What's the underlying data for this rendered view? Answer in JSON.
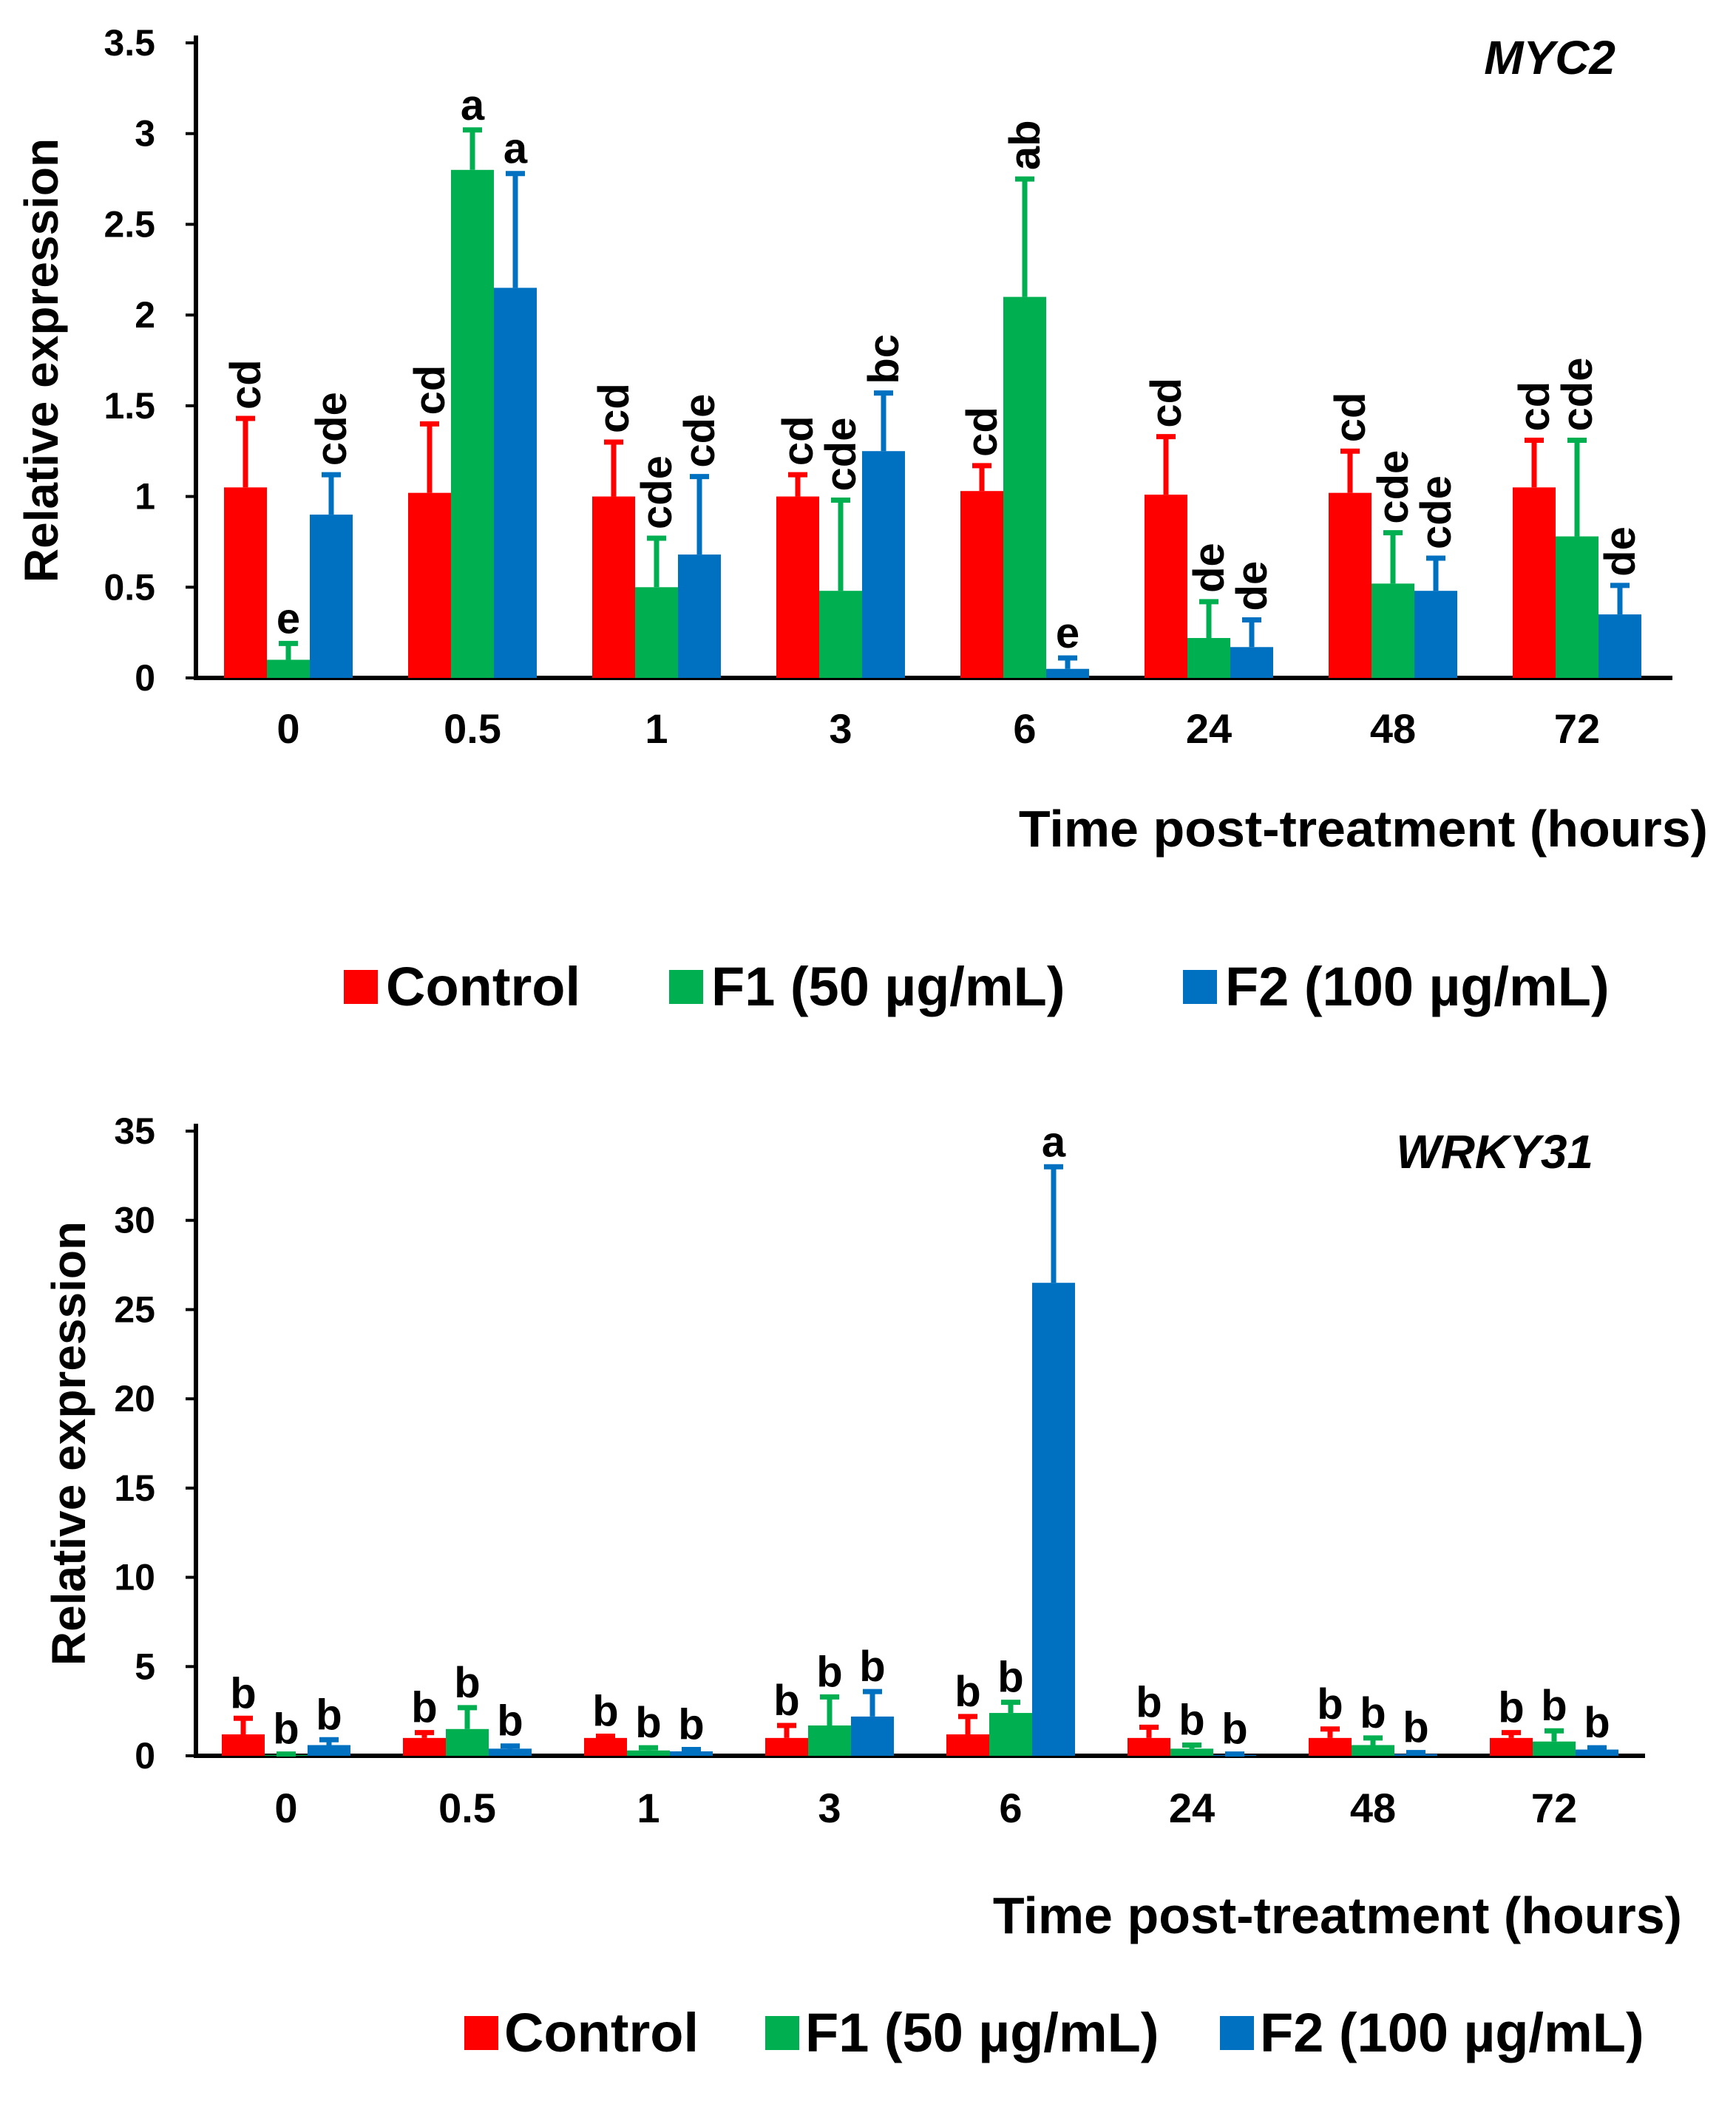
{
  "chart_data": [
    {
      "type": "bar",
      "title": "MYC2",
      "xlabel": "Time post-treatment (hours)",
      "ylabel": "Relative expression",
      "ylim": [
        0,
        3.5
      ],
      "yticks": [
        "0",
        "0.5",
        "1",
        "1.5",
        "2",
        "2.5",
        "3",
        "3.5"
      ],
      "categories": [
        "0",
        "0.5",
        "1",
        "3",
        "6",
        "24",
        "48",
        "72"
      ],
      "series": [
        {
          "name": "Control",
          "color": "#ff0000",
          "values": [
            1.05,
            1.02,
            1.0,
            1.0,
            1.03,
            1.01,
            1.02,
            1.05
          ],
          "errors": [
            0.38,
            0.38,
            0.3,
            0.12,
            0.14,
            0.32,
            0.23,
            0.26
          ],
          "letters": [
            "cd",
            "cd",
            "cd",
            "cd",
            "cd",
            "cd",
            "cd",
            "cd"
          ]
        },
        {
          "name": "F1 (50 µg/mL)",
          "color": "#00b050",
          "values": [
            0.1,
            2.8,
            0.5,
            0.48,
            2.1,
            0.22,
            0.52,
            0.78
          ],
          "errors": [
            0.09,
            0.22,
            0.27,
            0.5,
            0.65,
            0.2,
            0.28,
            0.53
          ],
          "letters": [
            "e",
            "a",
            "cde",
            "cde",
            "ab",
            "de",
            "cde",
            "cde"
          ]
        },
        {
          "name": "F2 (100 µg/mL)",
          "color": "#0070c0",
          "values": [
            0.9,
            2.15,
            0.68,
            1.25,
            0.05,
            0.17,
            0.48,
            0.35
          ],
          "errors": [
            0.22,
            0.63,
            0.43,
            0.32,
            0.06,
            0.15,
            0.18,
            0.16
          ],
          "letters": [
            "cde",
            "a",
            "cde",
            "bc",
            "e",
            "de",
            "cde",
            "de"
          ]
        }
      ]
    },
    {
      "type": "bar",
      "title": "WRKY31",
      "xlabel": "Time post-treatment (hours)",
      "ylabel": "Relative expression",
      "ylim": [
        0,
        35
      ],
      "yticks": [
        "0",
        "5",
        "10",
        "15",
        "20",
        "25",
        "30",
        "35"
      ],
      "categories": [
        "0",
        "0.5",
        "1",
        "3",
        "6",
        "24",
        "48",
        "72"
      ],
      "series": [
        {
          "name": "Control",
          "color": "#ff0000",
          "values": [
            1.2,
            1.0,
            1.0,
            1.0,
            1.2,
            1.0,
            1.0,
            1.0
          ],
          "errors": [
            0.9,
            0.3,
            0.1,
            0.7,
            1.0,
            0.6,
            0.5,
            0.3
          ],
          "letters": [
            "b",
            "b",
            "b",
            "b",
            "b",
            "b",
            "b",
            "b"
          ]
        },
        {
          "name": "F1 (50 µg/mL)",
          "color": "#00b050",
          "values": [
            0.05,
            1.5,
            0.3,
            1.7,
            2.4,
            0.4,
            0.6,
            0.8
          ],
          "errors": [
            0.05,
            1.2,
            0.15,
            1.6,
            0.6,
            0.2,
            0.4,
            0.6
          ],
          "letters": [
            "b",
            "b",
            "b",
            "b",
            "b",
            "b",
            "b",
            "b"
          ]
        },
        {
          "name": "F2 (100 µg/mL)",
          "color": "#0070c0",
          "values": [
            0.6,
            0.4,
            0.25,
            2.2,
            26.5,
            0.05,
            0.1,
            0.35
          ],
          "errors": [
            0.3,
            0.15,
            0.1,
            1.4,
            6.5,
            0.05,
            0.08,
            0.1
          ],
          "letters": [
            "b",
            "b",
            "b",
            "b",
            "a",
            "b",
            "b",
            "b"
          ]
        }
      ]
    }
  ]
}
